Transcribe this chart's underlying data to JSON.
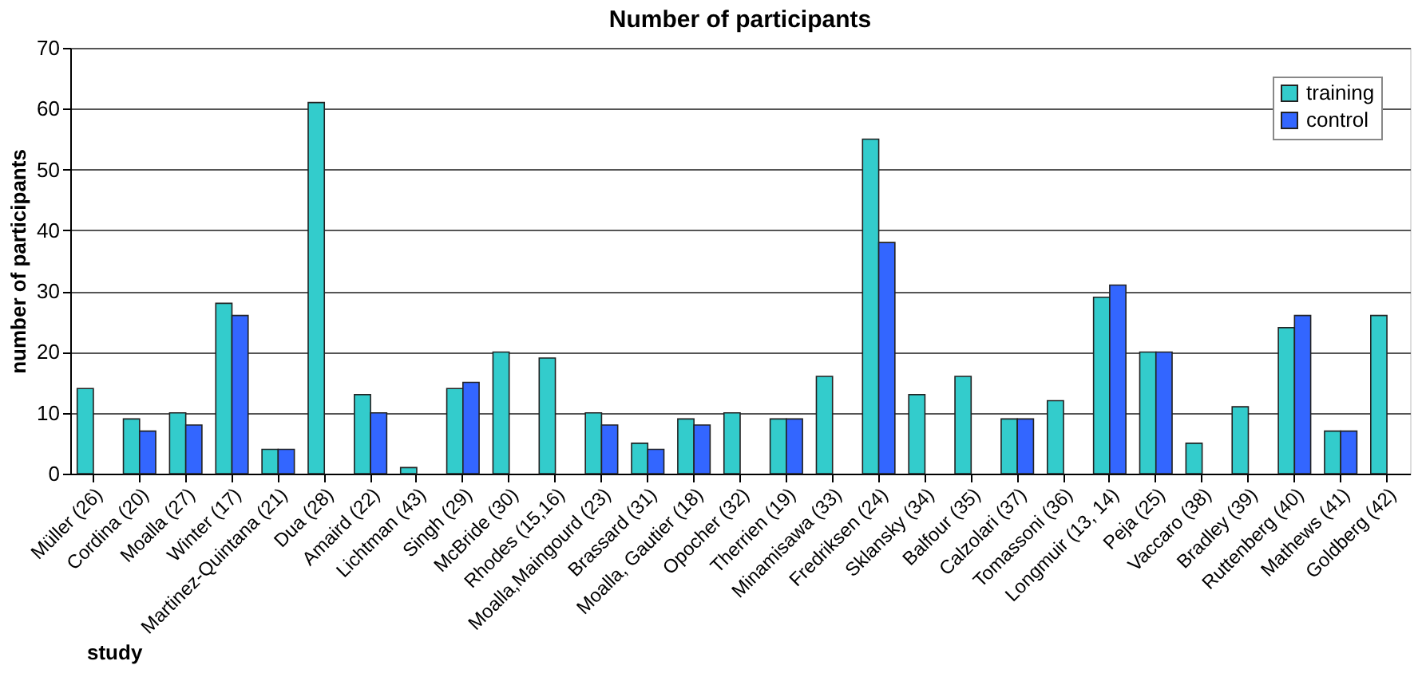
{
  "chart_data": {
    "type": "bar",
    "title": "Number of participants",
    "xlabel": "study",
    "ylabel": "number of participants",
    "categories": [
      "Müller (26)",
      "Cordina (20)",
      "Moalla (27)",
      "Winter (17)",
      "Martinez-Quintana (21)",
      "Dua (28)",
      "Amaird (22)",
      "Lichtman (43)",
      "Singh (29)",
      "McBride (30)",
      "Rhodes (15,16)",
      "Moalla,Maingourd (23)",
      "Brassard (31)",
      "Moalla, Gautier (18)",
      "Opocher (32)",
      "Therrien (19)",
      "Minamisawa (33)",
      "Fredriksen (24)",
      "Sklansky (34)",
      "Balfour (35)",
      "Calzolari (37)",
      "Tomassoni (36)",
      "Longmuir (13, 14)",
      "Peja (25)",
      "Vaccaro (38)",
      "Bradley (39)",
      "Ruttenberg (40)",
      "Mathews (41)",
      "Goldberg (42)"
    ],
    "series": [
      {
        "name": "training",
        "color": "#33cccc",
        "values": [
          14,
          9,
          10,
          28,
          4,
          61,
          13,
          1,
          14,
          20,
          19,
          10,
          5,
          9,
          10,
          9,
          16,
          55,
          13,
          16,
          9,
          12,
          29,
          20,
          5,
          11,
          24,
          7,
          26
        ]
      },
      {
        "name": "control",
        "color": "#3366ff",
        "values": [
          null,
          7,
          8,
          26,
          4,
          null,
          10,
          null,
          15,
          null,
          null,
          8,
          4,
          8,
          null,
          9,
          null,
          38,
          null,
          null,
          9,
          null,
          31,
          20,
          null,
          null,
          26,
          7,
          null
        ]
      }
    ],
    "ylim": [
      0,
      70
    ],
    "yticks": [
      0,
      10,
      20,
      30,
      40,
      50,
      60,
      70
    ],
    "grid": "y",
    "legend": "top right"
  }
}
